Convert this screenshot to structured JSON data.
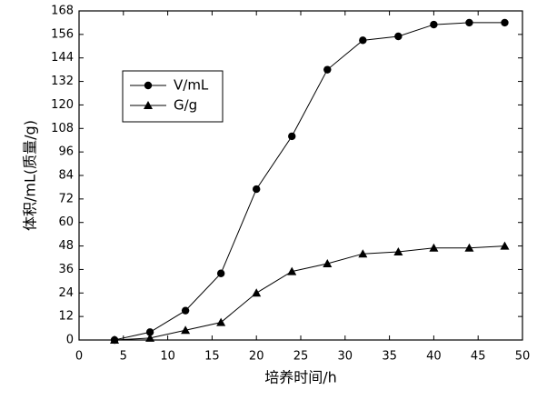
{
  "chart_data": {
    "type": "line",
    "x_label": "培养时间/h",
    "y_label": "体积/mL(质量/g)",
    "x": [
      4,
      8,
      12,
      16,
      20,
      24,
      28,
      32,
      36,
      40,
      44,
      48
    ],
    "series": [
      {
        "name": "V/mL",
        "color": "#000000",
        "marker": "circle",
        "values": [
          0,
          4,
          15,
          34,
          77,
          104,
          138,
          153,
          155,
          161,
          162,
          162
        ]
      },
      {
        "name": "G/g",
        "color": "#000000",
        "marker": "triangle",
        "values": [
          0,
          1,
          5,
          9,
          24,
          35,
          39,
          44,
          45,
          47,
          47,
          48
        ]
      }
    ],
    "xlim": [
      0,
      50
    ],
    "xticks": [
      0,
      5,
      10,
      15,
      20,
      25,
      30,
      35,
      40,
      45,
      50
    ],
    "ylim": [
      0,
      168
    ],
    "yticks": [
      0,
      12,
      24,
      36,
      48,
      60,
      72,
      84,
      96,
      108,
      120,
      132,
      144,
      156,
      168
    ],
    "grid": false,
    "legend": "upper left"
  }
}
